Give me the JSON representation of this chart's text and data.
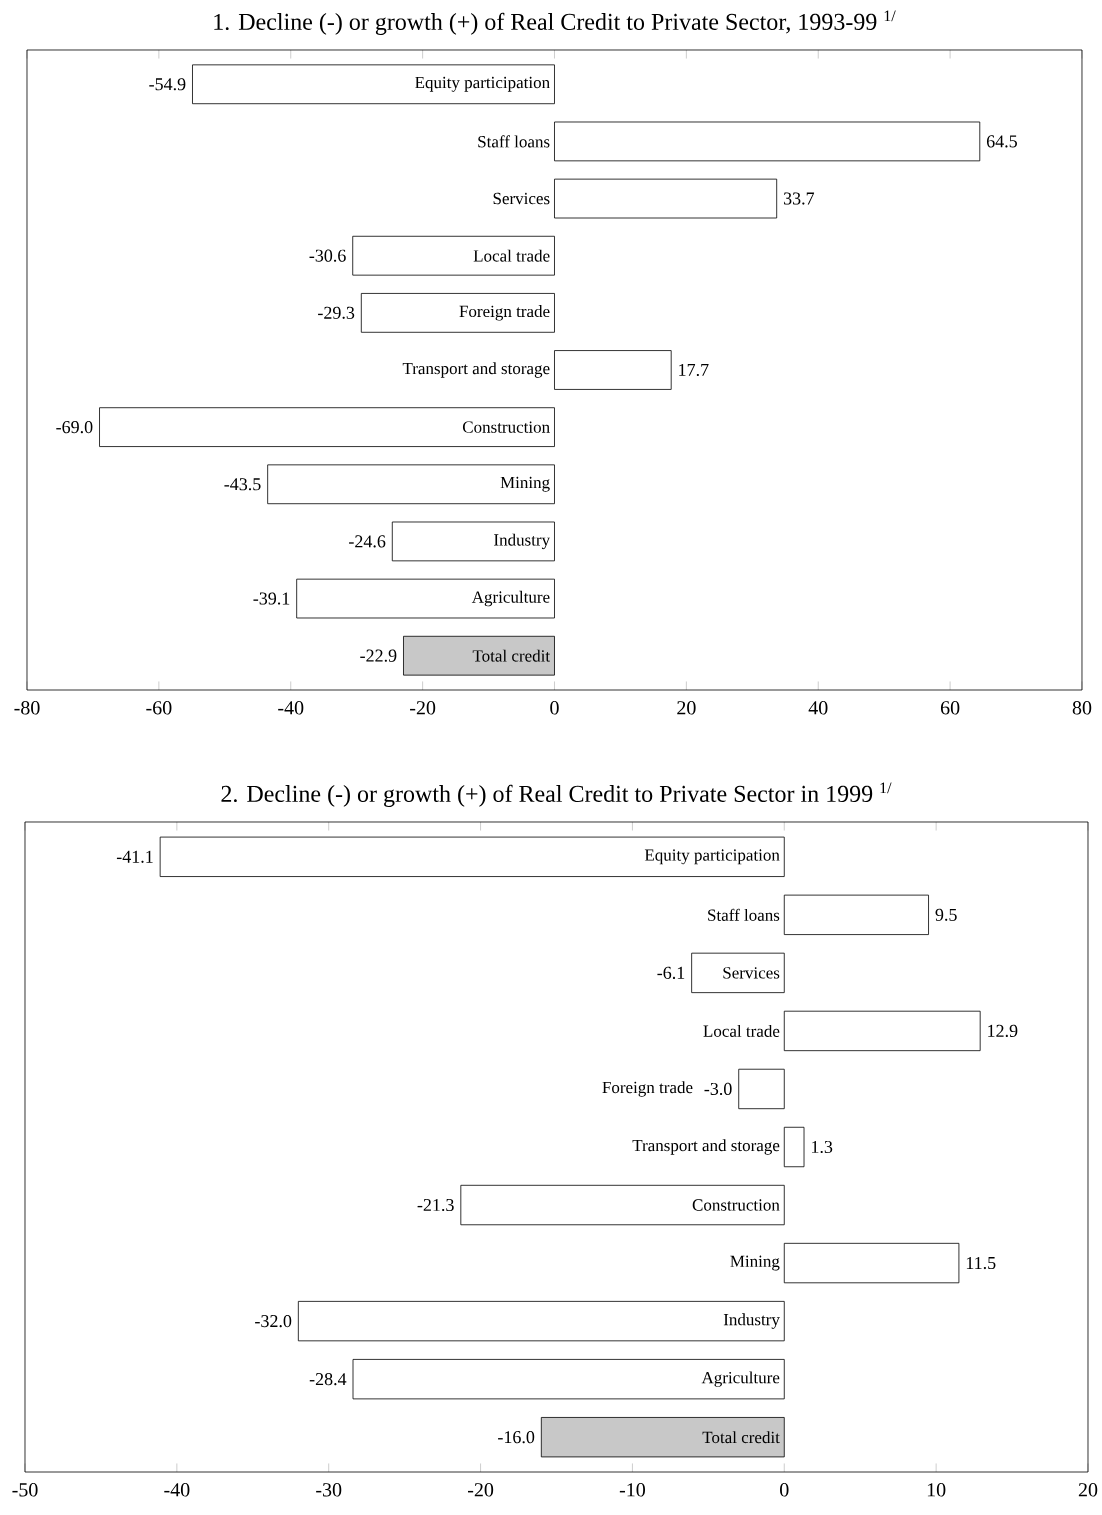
{
  "chart_data": [
    {
      "type": "bar",
      "orientation": "horizontal",
      "title": "1. Decline (-) or growth (+) of Real Credit to Private Sector, 1993-99 $^{1/}$",
      "categories": [
        "Equity participation",
        "Staff loans",
        "Services",
        "Local trade",
        "Foreign trade",
        "Transport and storage",
        "Construction",
        "Mining",
        "Industry",
        "Agriculture",
        "Total credit"
      ],
      "values": [
        -54.9,
        64.5,
        33.7,
        -30.6,
        -29.3,
        17.7,
        -69.0,
        -43.5,
        -24.6,
        -39.1,
        -22.9
      ],
      "colors": [
        "#ffffff",
        "#ffffff",
        "#ffffff",
        "#ffffff",
        "#ffffff",
        "#ffffff",
        "#ffffff",
        "#ffffff",
        "#ffffff",
        "#ffffff",
        "#c8c8c8"
      ],
      "value_labels": [
        "-54.9",
        "64.5",
        "33.7",
        "-30.6",
        "-29.3",
        "17.7",
        "-69.0",
        "-43.5",
        "-24.6",
        "-39.1",
        "-22.9"
      ],
      "xlim": [
        -80,
        80
      ],
      "xticks": [
        -80,
        -60,
        -40,
        -20,
        0,
        20,
        40,
        60,
        80
      ],
      "tick_labels": "x"
    },
    {
      "type": "bar",
      "orientation": "horizontal",
      "title": "2. Decline (-) or growth (+) of Real Credit to Private Sector in 1999 $^{1/}$",
      "categories": [
        "Equity participation",
        "Staff loans",
        "Services",
        "Local trade",
        "Foreign trade",
        "Transport and storage",
        "Construction",
        "Mining",
        "Industry",
        "Agriculture",
        "Total credit"
      ],
      "values": [
        -41.1,
        9.5,
        -6.1,
        12.9,
        -3.0,
        1.3,
        -21.3,
        11.5,
        -32.0,
        -28.4,
        -16.0
      ],
      "colors": [
        "#ffffff",
        "#ffffff",
        "#ffffff",
        "#ffffff",
        "#ffffff",
        "#ffffff",
        "#ffffff",
        "#ffffff",
        "#ffffff",
        "#ffffff",
        "#c8c8c8"
      ],
      "value_labels": [
        "-41.1",
        "9.5",
        "-6.1",
        "12.9",
        "-3.0",
        "1.3",
        "-21.3",
        "11.5",
        "-32.0",
        "-28.4",
        "-16.0"
      ],
      "xlim": [
        -50,
        20
      ],
      "xticks": [
        -50,
        -40,
        -30,
        -20,
        -10,
        0,
        10,
        20
      ],
      "tick_labels": "x"
    }
  ]
}
